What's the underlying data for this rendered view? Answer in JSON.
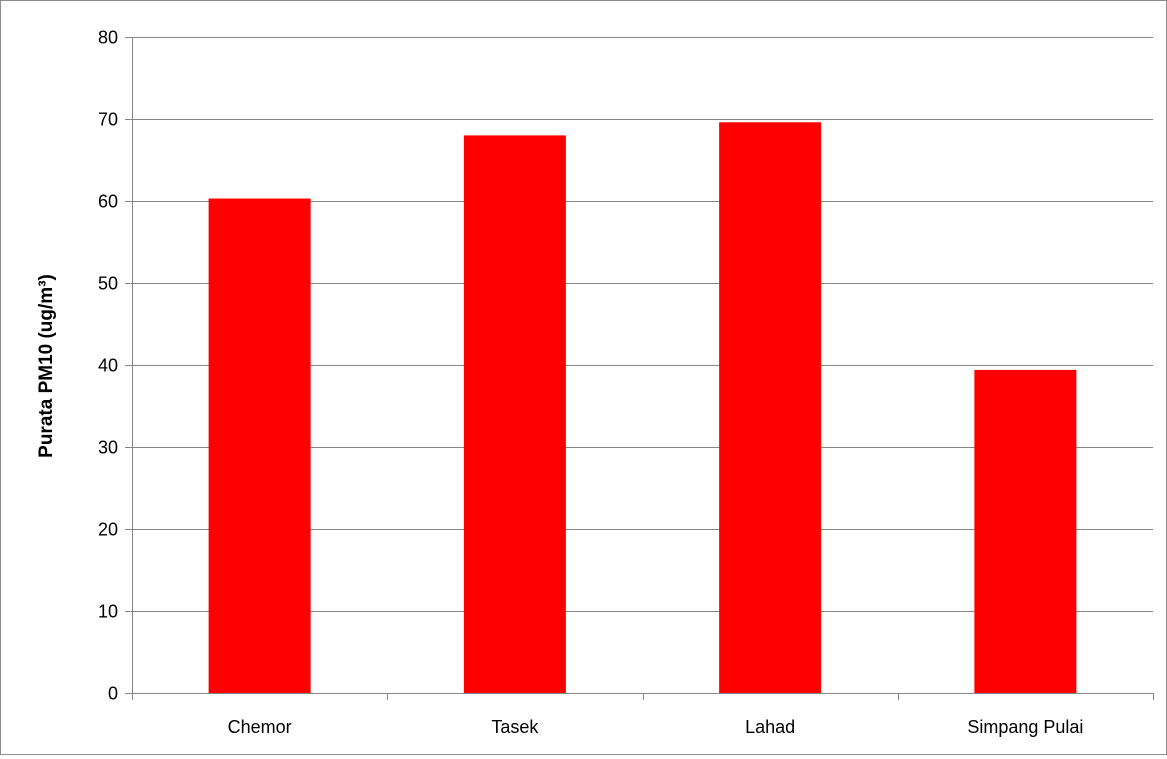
{
  "chart_data": {
    "type": "bar",
    "categories": [
      "Chemor",
      "Tasek",
      "Lahad",
      "Simpang Pulai"
    ],
    "values": [
      60.3,
      68.0,
      69.6,
      39.4
    ],
    "title": "",
    "xlabel": "",
    "ylabel": "Purata PM10 (ug/m³)",
    "ylim": [
      0,
      80
    ],
    "yticks": [
      0,
      10,
      20,
      30,
      40,
      50,
      60,
      70,
      80
    ],
    "grid": true,
    "legend": false,
    "bar_color": "#ff0000",
    "grid_color": "#868686",
    "axis_color": "#868686"
  }
}
